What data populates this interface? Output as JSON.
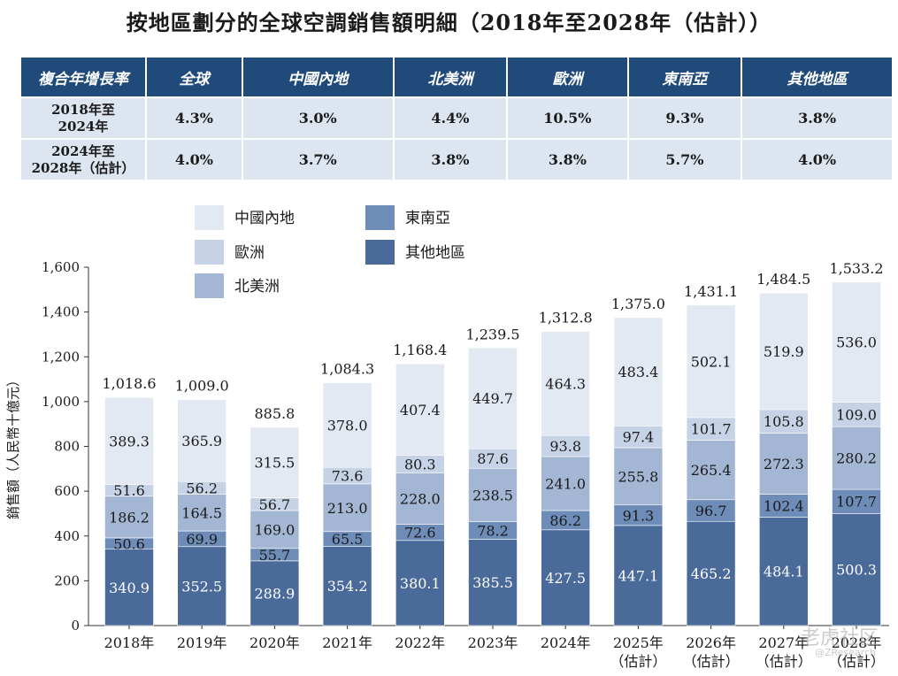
{
  "title": "按地區劃分的全球空調銷售額明細（2018年至2028年（估計））",
  "cagr_table": {
    "header_label": "複合年增長率",
    "columns": [
      "全球",
      "中國內地",
      "北美洲",
      "歐洲",
      "東南亞",
      "其他地區"
    ],
    "rows": [
      {
        "label_line1": "2018年至",
        "label_line2": "2024年",
        "values": [
          "4.3%",
          "3.0%",
          "4.4%",
          "10.5%",
          "9.3%",
          "3.8%"
        ]
      },
      {
        "label_line1": "2024年至",
        "label_line2": "2028年（估計）",
        "values": [
          "4.0%",
          "3.7%",
          "3.8%",
          "3.8%",
          "5.7%",
          "4.0%"
        ]
      }
    ]
  },
  "chart_data": {
    "type": "bar",
    "stacked": true,
    "ylabel": "銷售額（人民幣十億元）",
    "ylim": [
      0,
      1600
    ],
    "yticks": [
      0,
      200,
      400,
      600,
      800,
      1000,
      1200,
      1400,
      1600
    ],
    "ytick_labels": [
      "0",
      "200",
      "400",
      "600",
      "800",
      "1,000",
      "1,200",
      "1,400",
      "1,600"
    ],
    "categories": [
      "2018年",
      "2019年",
      "2020年",
      "2021年",
      "2022年",
      "2023年",
      "2024年",
      "2025年",
      "2026年",
      "2027年",
      "2028年"
    ],
    "category_sublabels": [
      "",
      "",
      "",
      "",
      "",
      "",
      "",
      "（估計）",
      "（估計）",
      "（估計）",
      "（估計）"
    ],
    "totals": [
      1018.6,
      1009.0,
      885.8,
      1084.3,
      1168.4,
      1239.5,
      1312.8,
      1375.0,
      1431.1,
      1484.5,
      1533.2
    ],
    "total_labels": [
      "1,018.6",
      "1,009.0",
      "885.8",
      "1,084.3",
      "1,168.4",
      "1,239.5",
      "1,312.8",
      "1,375.0",
      "1,431.1",
      "1,484.5",
      "1,533.2"
    ],
    "series": [
      {
        "name": "其他地區",
        "color": "#4a6a9a",
        "label_color": "#ffffff",
        "values": [
          340.9,
          352.5,
          288.9,
          354.2,
          380.1,
          385.5,
          427.5,
          447.1,
          465.2,
          484.1,
          500.3
        ]
      },
      {
        "name": "東南亞",
        "color": "#6d8cb8",
        "label_color": "#1a1a1a",
        "values": [
          50.6,
          69.9,
          55.7,
          65.5,
          72.6,
          78.2,
          86.2,
          91.3,
          96.7,
          102.4,
          107.7
        ]
      },
      {
        "name": "北美洲",
        "color": "#a3b6d3",
        "label_color": "#1a1a1a",
        "values": [
          186.2,
          164.5,
          169.0,
          213.0,
          228.0,
          238.5,
          241.0,
          255.8,
          265.4,
          272.3,
          280.2
        ]
      },
      {
        "name": "歐洲",
        "color": "#c6d3e6",
        "label_color": "#1a1a1a",
        "values": [
          51.6,
          56.2,
          56.7,
          73.6,
          80.3,
          87.6,
          93.8,
          97.4,
          101.7,
          105.8,
          109.0
        ]
      },
      {
        "name": "中國內地",
        "color": "#e3e9f2",
        "label_color": "#1a1a1a",
        "values": [
          389.3,
          365.9,
          315.5,
          378.0,
          407.4,
          449.7,
          464.3,
          483.4,
          502.1,
          519.9,
          536.0
        ]
      }
    ],
    "legend_order": [
      "中國內地",
      "東南亞",
      "歐洲",
      "其他地區",
      "北美洲"
    ],
    "legend": "top-left",
    "grid": false
  },
  "watermark": {
    "text": "老虎社区",
    "subtext": "@ZResearch"
  }
}
